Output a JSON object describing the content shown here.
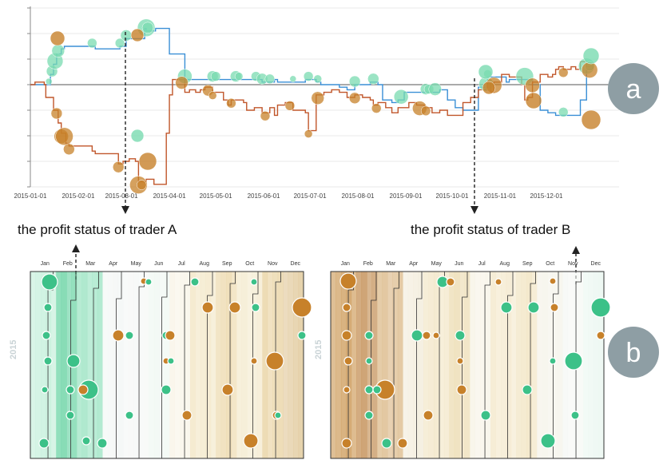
{
  "chart_data": [
    {
      "type": "line",
      "panel": "a",
      "xlabel": "",
      "ylabel": "",
      "x_tick_labels": [
        "2015-01-01",
        "2015-02-01",
        "2015-03-01",
        "2015-04-01",
        "2015-05-01",
        "2015-06-01",
        "2015-07-01",
        "2015-08-01",
        "2015-09-01",
        "2015-10-01",
        "2015-11-01",
        "2015-12-01"
      ],
      "x_range_days": [
        0,
        364
      ],
      "ylim": [
        -4,
        3
      ],
      "grid": true,
      "series": [
        {
          "name": "trader A",
          "color": "#3a8fd6",
          "x": [
            0,
            7,
            10,
            13,
            15,
            17,
            20,
            22,
            27,
            40,
            42,
            52,
            58,
            62,
            68,
            74,
            75,
            80,
            81,
            85,
            90,
            100,
            110,
            120,
            125,
            135,
            140,
            145,
            150,
            155,
            158,
            160,
            165,
            170,
            178,
            180,
            185,
            188,
            190,
            200,
            205,
            210,
            215,
            220,
            222,
            225,
            228,
            230,
            234,
            238,
            242,
            245,
            250,
            255,
            260,
            265,
            270,
            275,
            280,
            290,
            296,
            300,
            305,
            308,
            310,
            318,
            320,
            322,
            325,
            330,
            335,
            338,
            340,
            345,
            350,
            353,
            356,
            360,
            364
          ],
          "y": [
            0,
            0,
            0,
            0.4,
            0.8,
            1.2,
            1.4,
            1.5,
            1.5,
            1.5,
            1.4,
            1.4,
            1.5,
            1.8,
            1.8,
            2.2,
            2.1,
            2.1,
            2.2,
            2.2,
            1.2,
            0.2,
            0.2,
            0.2,
            0.2,
            0.2,
            0.2,
            0.2,
            0.1,
            0.1,
            0.2,
            0.1,
            0.1,
            0.1,
            0.2,
            0.2,
            0.1,
            0,
            0,
            -0.1,
            -0.2,
            0,
            0,
            0.1,
            0.1,
            0,
            -0.6,
            -0.6,
            -0.7,
            -0.6,
            -0.3,
            -0.3,
            -0.3,
            -0.3,
            -0.3,
            -0.2,
            -0.6,
            -0.9,
            -1.0,
            -0.1,
            0.3,
            0.3,
            0.3,
            0.1,
            0.2,
            0.2,
            0.2,
            0.2,
            0,
            -1.0,
            -1.1,
            -1.1,
            -1.2,
            -1.2,
            -1.2,
            -1.2,
            -0.6,
            0.6,
            0.9
          ]
        },
        {
          "name": "trader B",
          "color": "#c0562a",
          "x": [
            0,
            3,
            7,
            9,
            10,
            15,
            18,
            20,
            23,
            25,
            30,
            35,
            40,
            42,
            50,
            57,
            60,
            64,
            68,
            70,
            75,
            80,
            86,
            88,
            90,
            92,
            100,
            103,
            107,
            110,
            113,
            118,
            125,
            128,
            130,
            135,
            138,
            140,
            145,
            150,
            155,
            158,
            160,
            165,
            170,
            178,
            180,
            182,
            185,
            190,
            195,
            200,
            205,
            210,
            215,
            220,
            222,
            225,
            228,
            230,
            234,
            238,
            242,
            245,
            250,
            255,
            260,
            265,
            270,
            275,
            280,
            285,
            290,
            295,
            298,
            300,
            305,
            310,
            318,
            320,
            322,
            325,
            330,
            335,
            338,
            340,
            342,
            345,
            350,
            353,
            356,
            360,
            364
          ],
          "y": [
            0,
            0.1,
            0.1,
            0,
            -0.5,
            -1.0,
            -1.5,
            -1.9,
            -2.3,
            -2.4,
            -2.4,
            -2.4,
            -2.6,
            -2.7,
            -2.7,
            -3.1,
            -3.0,
            -2.9,
            -3.0,
            -3.8,
            -3.7,
            -3.9,
            -3.9,
            -1.9,
            -0.4,
            0.2,
            -0.3,
            -0.2,
            -0.3,
            -0.2,
            -0.1,
            -0.3,
            -0.6,
            -0.8,
            -0.6,
            -0.6,
            -0.7,
            -1.0,
            -0.9,
            -1.1,
            -0.9,
            -1.2,
            -0.8,
            -0.7,
            -1.0,
            -1.1,
            -1.8,
            -1.8,
            -0.4,
            -0.3,
            -0.2,
            -0.3,
            -0.5,
            -0.4,
            -0.5,
            -0.6,
            -0.8,
            -0.7,
            -0.7,
            -0.9,
            -1.1,
            -0.9,
            -0.9,
            -0.7,
            -0.8,
            -0.9,
            -1.1,
            -1.0,
            -1.2,
            -1.2,
            -0.7,
            -0.5,
            -0.2,
            0.1,
            -0.3,
            0.1,
            0.4,
            0.3,
            0,
            -0.6,
            -0.5,
            0.1,
            0.4,
            0.3,
            0.4,
            0.6,
            0.7,
            0.6,
            0.7,
            0.6,
            0.9,
            0.7,
            0.6
          ]
        }
      ]
    },
    {
      "type": "heatmap",
      "panel": "b-left",
      "months": [
        "Jan",
        "Feb",
        "Mar",
        "Apr",
        "May",
        "Jun",
        "Jul",
        "Aug",
        "Sep",
        "Oct",
        "Nov",
        "Dec"
      ],
      "ylabel": "2015"
    },
    {
      "type": "heatmap",
      "panel": "b-right",
      "months": [
        "Jan",
        "Feb",
        "Mar",
        "Apr",
        "May",
        "Jun",
        "Jul",
        "Aug",
        "Sep",
        "Oct",
        "Nov",
        "Dec"
      ],
      "ylabel": "2015"
    }
  ],
  "annotations": {
    "caption_a": "the profit status of trader A",
    "caption_b": "the profit status of trader B",
    "badge_a": "a",
    "badge_b": "b",
    "year_label": "2015"
  },
  "colors": {
    "green": "#3cc188",
    "green_light": "#79dbb0",
    "brown": "#c7812a",
    "blue_line": "#3a8fd6",
    "red_line": "#c0562a",
    "badge": "#8e9ea4"
  }
}
